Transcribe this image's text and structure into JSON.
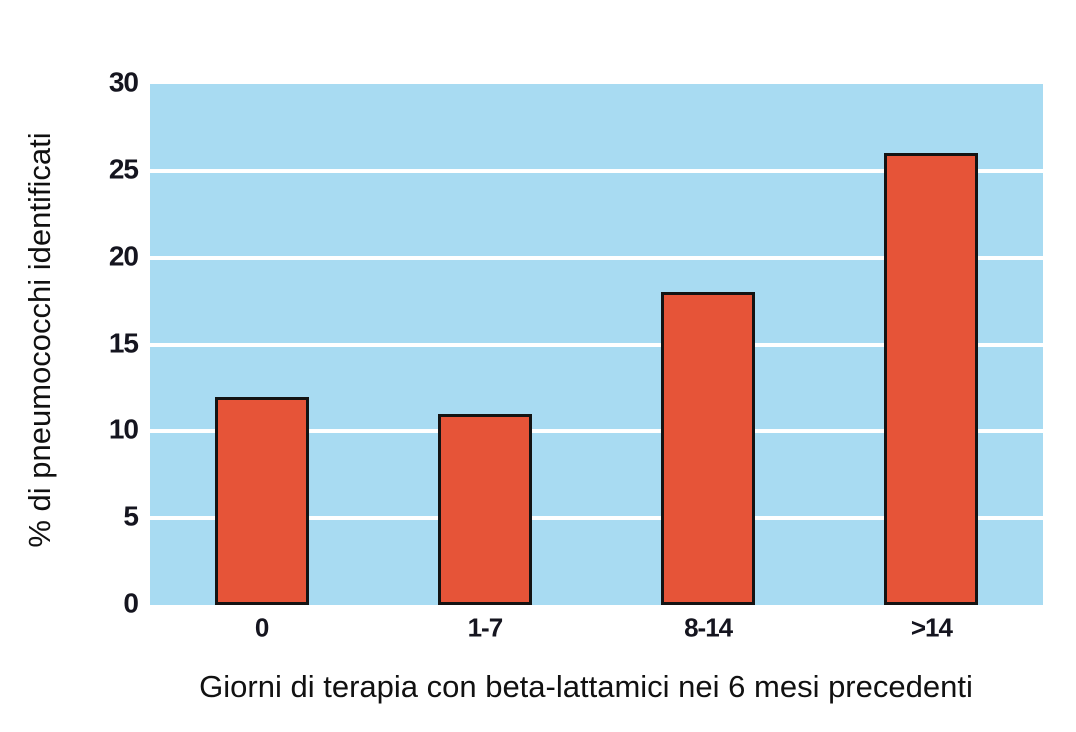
{
  "chart_data": {
    "type": "bar",
    "categories": [
      "0",
      "1-7",
      "8-14",
      ">14"
    ],
    "values": [
      12,
      11,
      18,
      26
    ],
    "title": "",
    "xlabel": "Giorni di terapia con beta-lattamici nei 6 mesi precedenti",
    "ylabel": "% di pneumococchi identificati",
    "ylim": [
      0,
      30
    ],
    "yticks": [
      0,
      5,
      10,
      15,
      20,
      25,
      30
    ],
    "grid": "horizontal-white-lines",
    "legend": "none",
    "colors": {
      "plot_background": "#a8dbf2",
      "bar_fill": "#e65438",
      "bar_border": "#131313",
      "gridline": "#ffffff",
      "tick_text": "#15151f",
      "axis_title_text": "#111111",
      "page_background": "#ffffff"
    }
  }
}
